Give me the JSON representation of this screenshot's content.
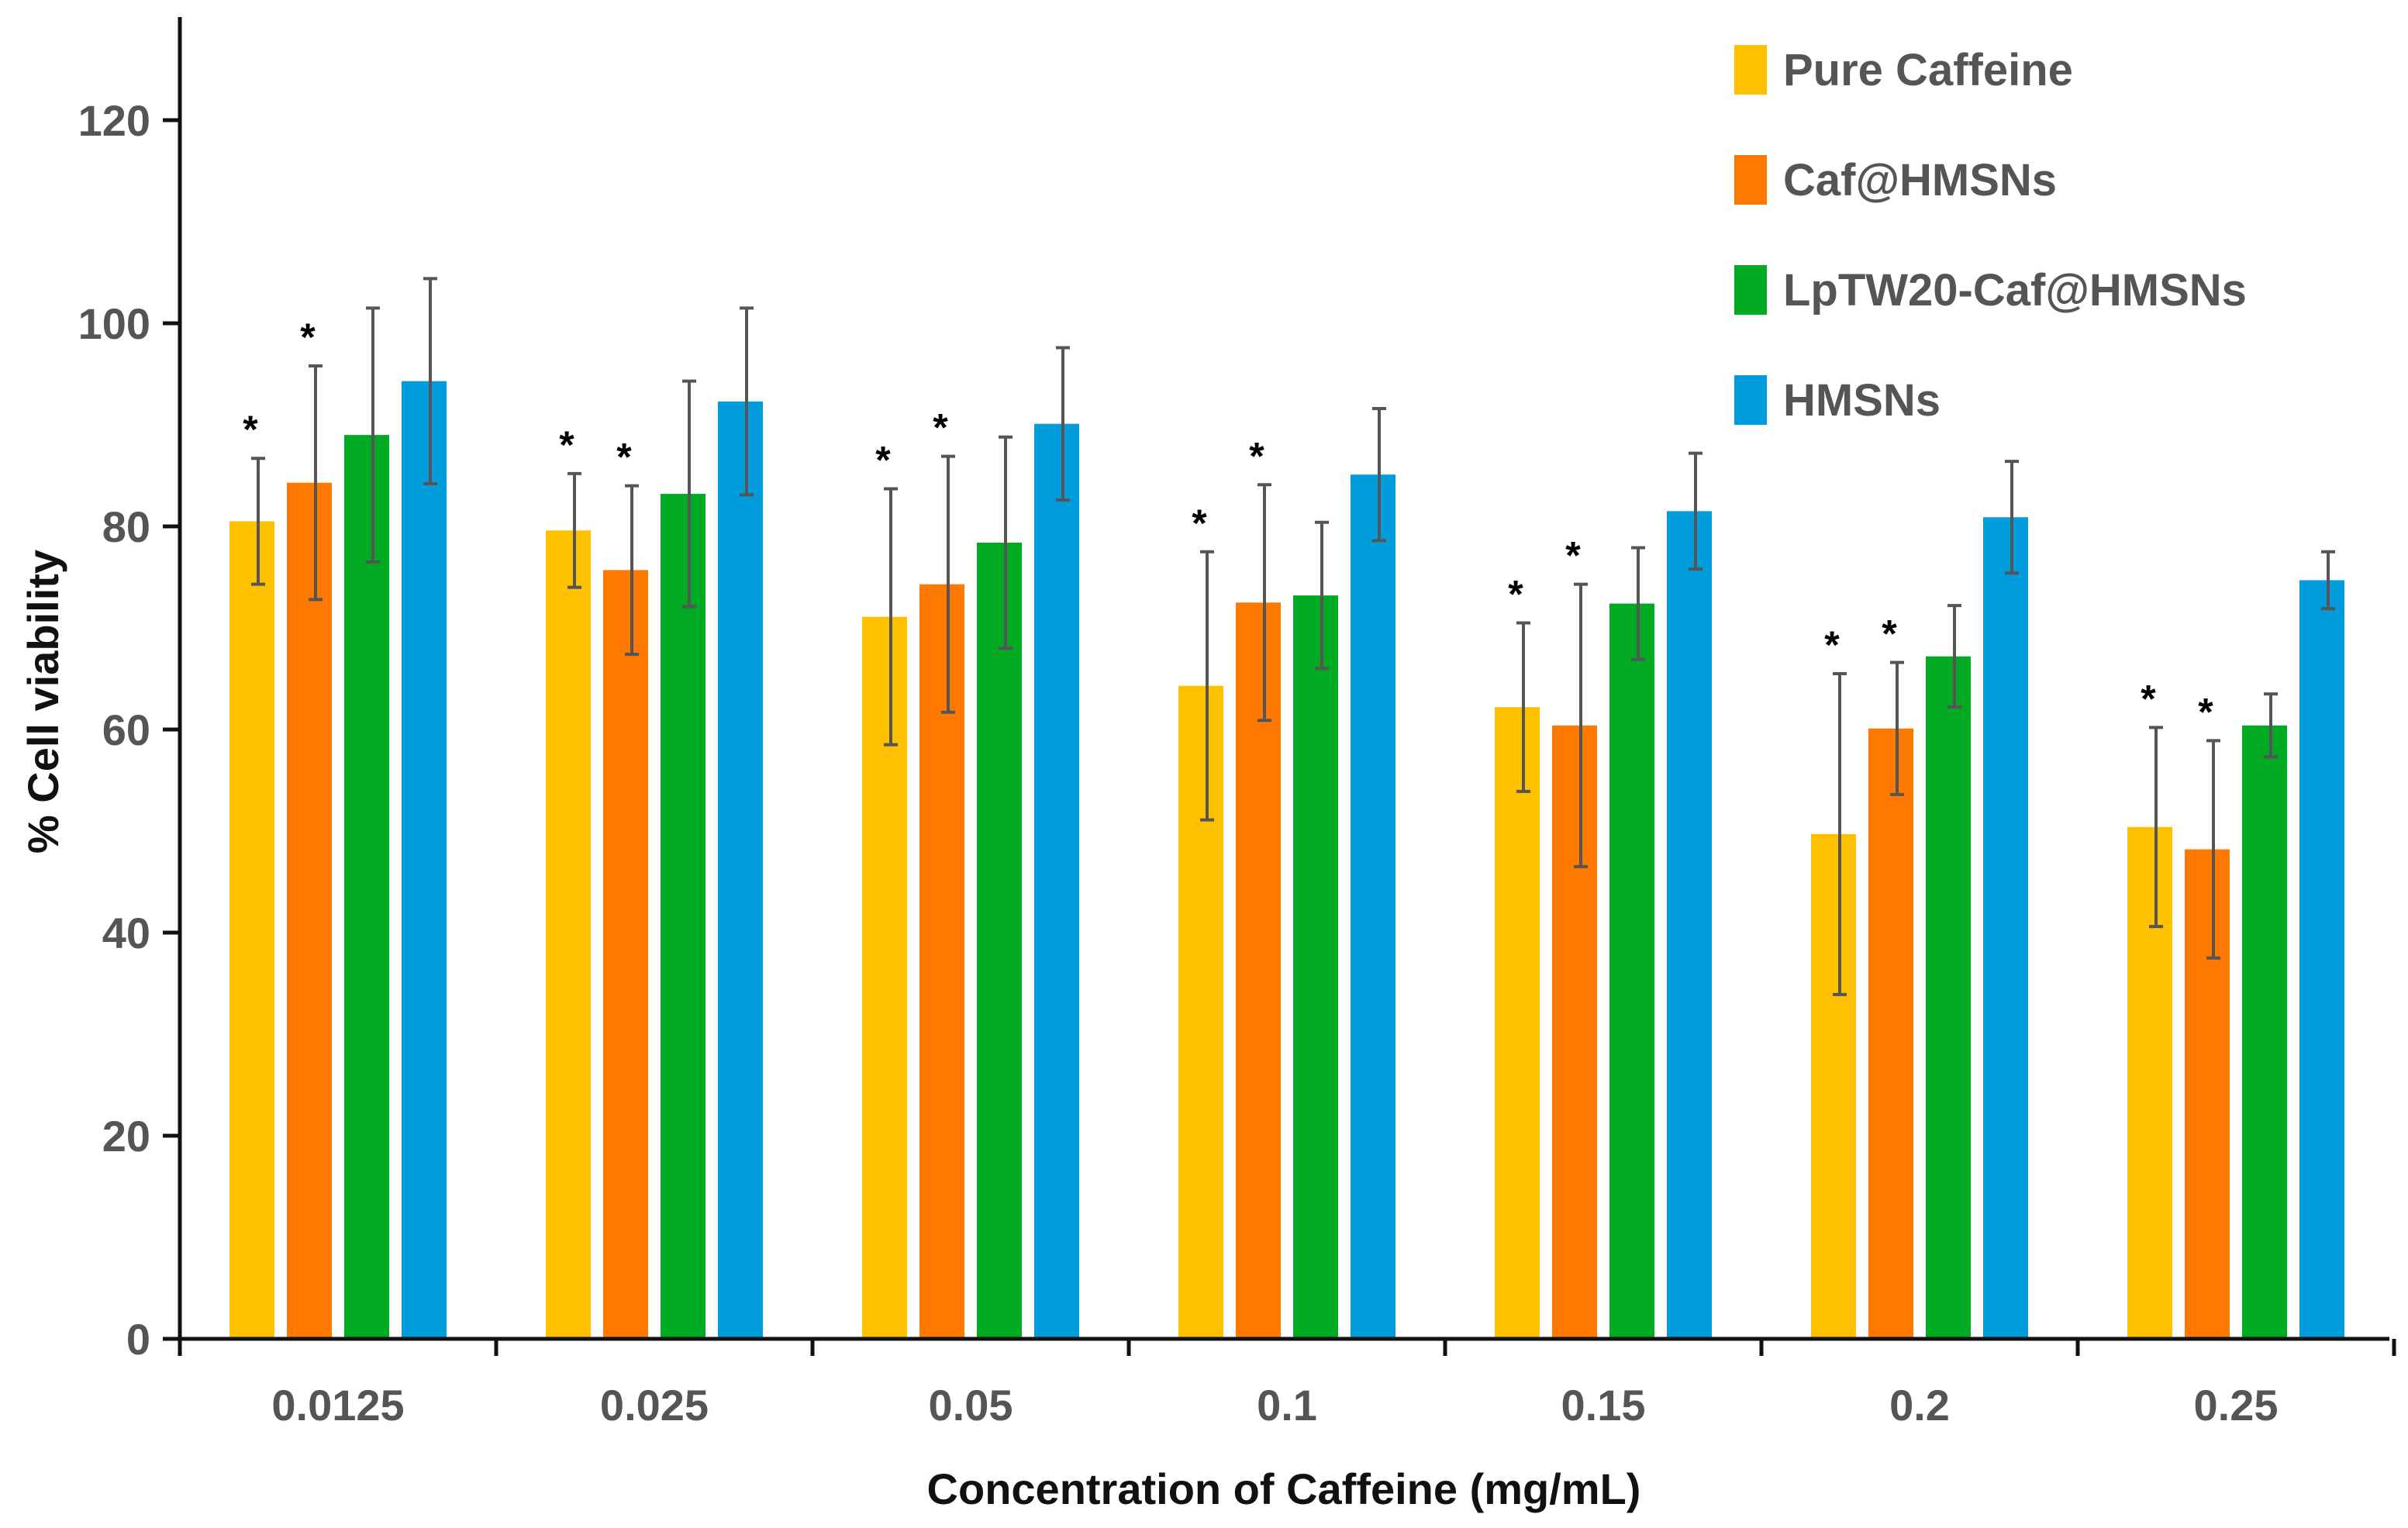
{
  "chart_data": {
    "type": "bar",
    "title": "",
    "xlabel": "Concentration of Caffeine (mg/mL)",
    "ylabel": "% Cell viability",
    "ylim": [
      0,
      130
    ],
    "yticks": [
      0,
      20,
      40,
      60,
      80,
      100,
      120
    ],
    "categories": [
      "0.0125",
      "0.025",
      "0.05",
      "0.1",
      "0.15",
      "0.2",
      "0.25"
    ],
    "legend_position": "top-right",
    "significance_marker": "*",
    "series": [
      {
        "name": "Pure Caffeine",
        "color": "#FFC000",
        "values": [
          80.5,
          79.6,
          71.1,
          64.3,
          62.2,
          49.7,
          50.4
        ],
        "errors": [
          6.2,
          5.6,
          12.6,
          13.2,
          8.3,
          15.8,
          9.8
        ],
        "significant": [
          true,
          true,
          true,
          true,
          true,
          true,
          true
        ]
      },
      {
        "name": "Caf@HMSNs",
        "color": "#FF7800",
        "values": [
          84.3,
          75.7,
          74.3,
          72.5,
          60.4,
          60.1,
          48.2
        ],
        "errors": [
          11.5,
          8.3,
          12.6,
          11.6,
          13.9,
          6.5,
          10.7
        ],
        "significant": [
          true,
          true,
          true,
          true,
          true,
          true,
          true
        ]
      },
      {
        "name": "LpTW20-Caf@HMSNs",
        "color": "#00AA22",
        "values": [
          89.0,
          83.2,
          78.4,
          73.2,
          72.4,
          67.2,
          60.4
        ],
        "errors": [
          12.5,
          11.1,
          10.4,
          7.2,
          5.5,
          5.0,
          3.1
        ],
        "significant": [
          false,
          false,
          false,
          false,
          false,
          false,
          false
        ]
      },
      {
        "name": "HMSNs",
        "color": "#009CDC",
        "values": [
          94.3,
          92.3,
          90.1,
          85.1,
          81.5,
          80.9,
          74.7
        ],
        "errors": [
          10.1,
          9.2,
          7.5,
          6.5,
          5.7,
          5.5,
          2.8
        ],
        "significant": [
          false,
          false,
          false,
          false,
          false,
          false,
          false
        ]
      }
    ]
  }
}
